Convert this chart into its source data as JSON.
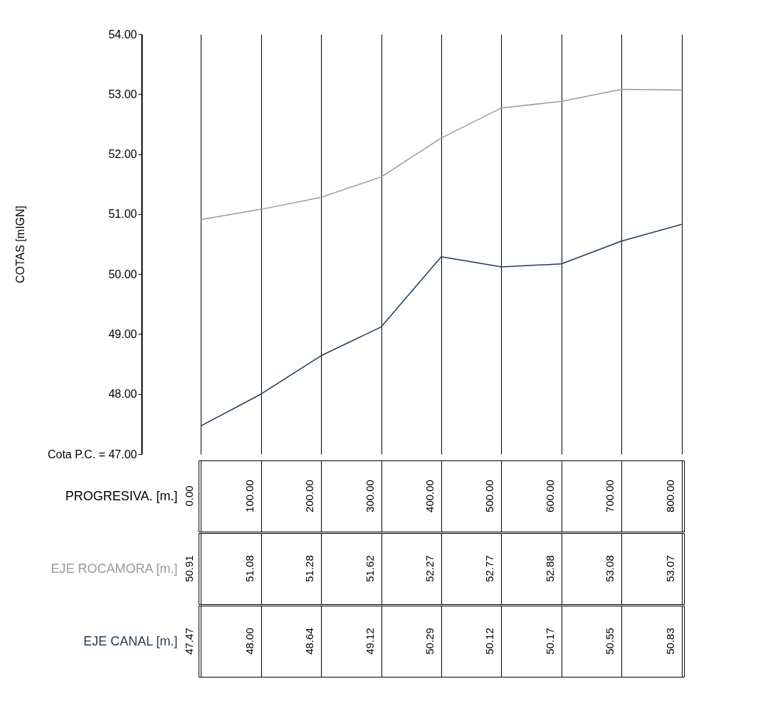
{
  "chart_data": {
    "type": "line",
    "xlabel": "PROGRESIVA. [m.]",
    "ylabel": "COTAS [mIGN]",
    "categories": [
      "0.00",
      "100.00",
      "200.00",
      "300.00",
      "400.00",
      "500.00",
      "600.00",
      "700.00",
      "800.00"
    ],
    "series": [
      {
        "name": "EJE ROCAMORA [m.]",
        "color": "#9a9a9a",
        "values": [
          50.91,
          51.08,
          51.28,
          51.62,
          52.27,
          52.77,
          52.88,
          53.08,
          53.07
        ],
        "value_labels": [
          "50.91",
          "51.08",
          "51.28",
          "51.62",
          "52.27",
          "52.77",
          "52.88",
          "53.08",
          "53.07"
        ]
      },
      {
        "name": "EJE CANAL  [m.]",
        "color": "#1f3a55",
        "values": [
          47.47,
          48.0,
          48.64,
          49.12,
          50.29,
          50.12,
          50.17,
          50.55,
          50.83
        ],
        "value_labels": [
          "47.47",
          "48.00",
          "48.64",
          "49.12",
          "50.29",
          "50.12",
          "50.17",
          "50.55",
          "50.83"
        ]
      }
    ],
    "ylim": [
      47,
      54
    ],
    "yticks": [
      {
        "value": 47,
        "label": "Cota P.C. = 47.00"
      },
      {
        "value": 48,
        "label": "48.00"
      },
      {
        "value": 49,
        "label": "49.00"
      },
      {
        "value": 50,
        "label": "50.00"
      },
      {
        "value": 51,
        "label": "51.00"
      },
      {
        "value": 52,
        "label": "52.00"
      },
      {
        "value": 53,
        "label": "53.00"
      },
      {
        "value": 54,
        "label": "54.00"
      }
    ],
    "grid": "x"
  }
}
